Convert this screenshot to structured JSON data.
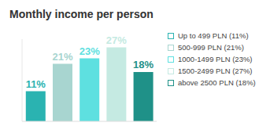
{
  "chart_data": {
    "type": "bar",
    "title": "Monthly income per person",
    "categories": [
      "Up to 499 PLN (11%)",
      "500-999 PLN (21%)",
      "1000-1499 PLN (23%)",
      "1500-2499 PLN (27%)",
      "above 2500 PLN (18%)"
    ],
    "values": [
      11,
      21,
      23,
      27,
      18
    ],
    "value_labels": [
      "11%",
      "21%",
      "23%",
      "27%",
      "18%"
    ],
    "colors": [
      "#2ab3b1",
      "#a8d5d0",
      "#5ee0e0",
      "#c5eae2",
      "#1f9188"
    ],
    "ylim": [
      0,
      30
    ],
    "data_labels": true,
    "tick_labels": false,
    "legend": "right"
  }
}
